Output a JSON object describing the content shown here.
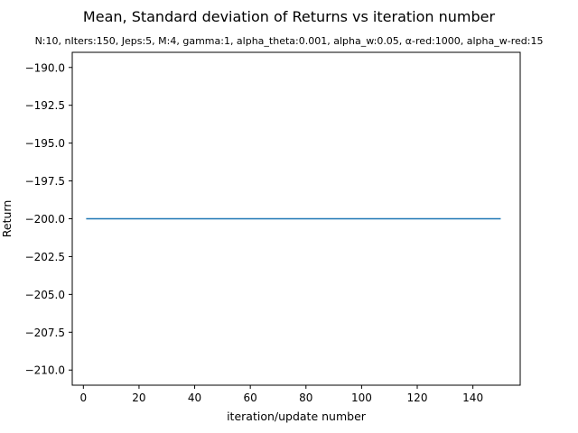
{
  "chart_data": {
    "type": "line",
    "title": "Mean, Standard deviation of Returns vs iteration number",
    "subtitle": "N:10, nIters:150, Jeps:5, M:4, gamma:1, alpha_theta:0.001, alpha_w:0.05, α-red:1000, alpha_w-red:15",
    "xlabel": "iteration/update number",
    "ylabel": "Return",
    "xlim": [
      -4,
      157
    ],
    "ylim": [
      -211.0,
      -189.0
    ],
    "x_ticks": [
      0,
      20,
      40,
      60,
      80,
      100,
      120,
      140
    ],
    "x_tick_labels": [
      "0",
      "20",
      "40",
      "60",
      "80",
      "100",
      "120",
      "140"
    ],
    "y_ticks": [
      -190.0,
      -192.5,
      -195.0,
      -197.5,
      -200.0,
      -202.5,
      -205.0,
      -207.5,
      -210.0
    ],
    "y_tick_labels": [
      "−190.0",
      "−192.5",
      "−195.0",
      "−197.5",
      "−200.0",
      "−202.5",
      "−205.0",
      "−207.5",
      "−210.0"
    ],
    "grid": false,
    "series": [
      {
        "x": [
          1,
          150
        ],
        "values": [
          -200.0,
          -200.0
        ],
        "color": "#1f77b4"
      }
    ]
  }
}
